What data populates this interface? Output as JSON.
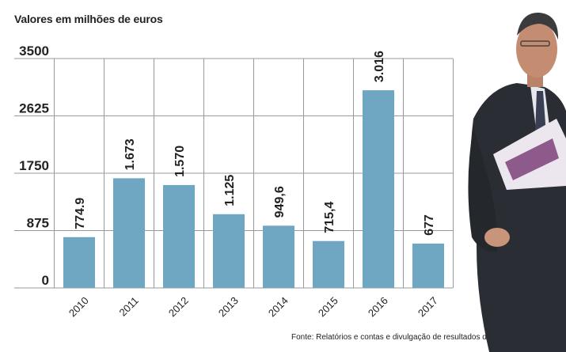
{
  "subtitle": "Valores em milhões de euros",
  "source": "Fonte: Relatórios e contas e divulgação de resultados da CGD",
  "colors": {
    "bar": "#6fa6c1",
    "grid": "#999999",
    "axis_text": "#222222"
  },
  "chart_data": {
    "type": "bar",
    "title": "",
    "xlabel": "",
    "ylabel": "",
    "categories": [
      "2010",
      "2011",
      "2012",
      "2013",
      "2014",
      "2015",
      "2016",
      "2017"
    ],
    "values": [
      774.9,
      1673,
      1570,
      1125,
      949.6,
      715.4,
      3016,
      677
    ],
    "data_labels": [
      "774.9",
      "1.673",
      "1.570",
      "1.125",
      "949,6",
      "715,4",
      "3.016",
      "677"
    ],
    "yticks": [
      0,
      875,
      1750,
      2625,
      3500
    ],
    "ytick_labels": [
      "0",
      "875",
      "1750",
      "2625",
      "3500"
    ],
    "ylim": [
      0,
      3500
    ],
    "grid": true,
    "legend": "none"
  },
  "photo": {
    "description_icon": "person-photo"
  }
}
